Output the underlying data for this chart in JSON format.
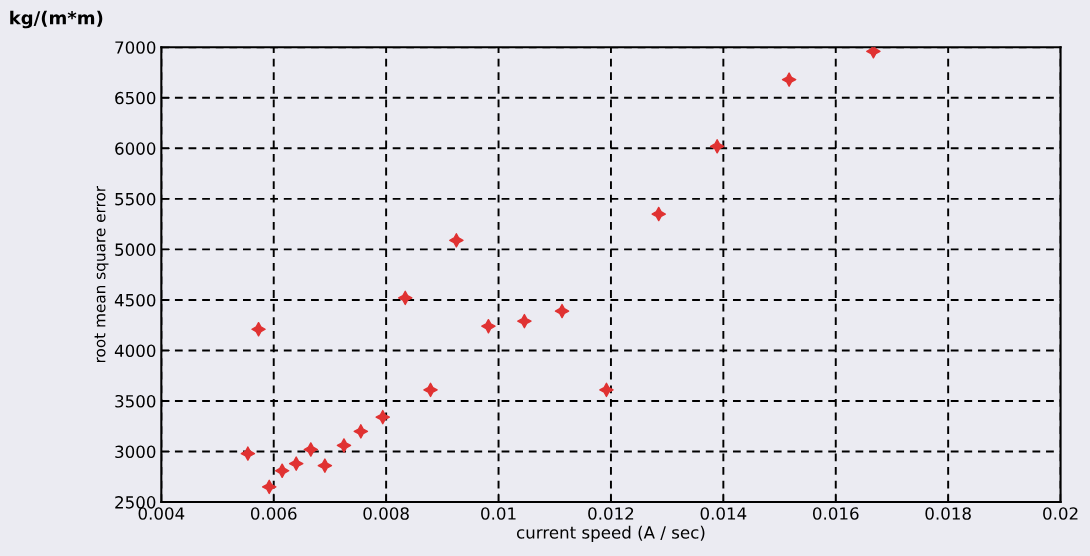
{
  "chart_data": {
    "type": "scatter",
    "xlabel": "current speed (A / sec)",
    "ylabel": "root mean square error",
    "annotations": [
      "kg/(m*m)"
    ],
    "x": [
      0.00573,
      0.00554,
      0.00592,
      0.00615,
      0.0064,
      0.00666,
      0.00691,
      0.00725,
      0.00755,
      0.00794,
      0.00834,
      0.00879,
      0.00925,
      0.00982,
      0.01046,
      0.01113,
      0.01192,
      0.01285,
      0.01389,
      0.01517,
      0.01667
    ],
    "series": [
      {
        "color": "#e03232",
        "values": [
          4210,
          2980,
          2650,
          2810,
          2880,
          3020,
          2860,
          3060,
          3200,
          3340,
          4520,
          3610,
          5090,
          4240,
          4290,
          4390,
          3610,
          5350,
          6020,
          6680,
          6960
        ]
      }
    ],
    "xlim": [
      0.004,
      0.02
    ],
    "xticks": [
      0.004,
      0.006,
      0.008,
      0.01,
      0.012,
      0.014,
      0.016,
      0.018,
      0.02
    ],
    "ylim": [
      2500,
      7000
    ],
    "yticks": [
      2500,
      3000,
      3500,
      4000,
      4500,
      5000,
      5500,
      6000,
      6500,
      7000
    ],
    "grid": true,
    "marker": "star"
  }
}
